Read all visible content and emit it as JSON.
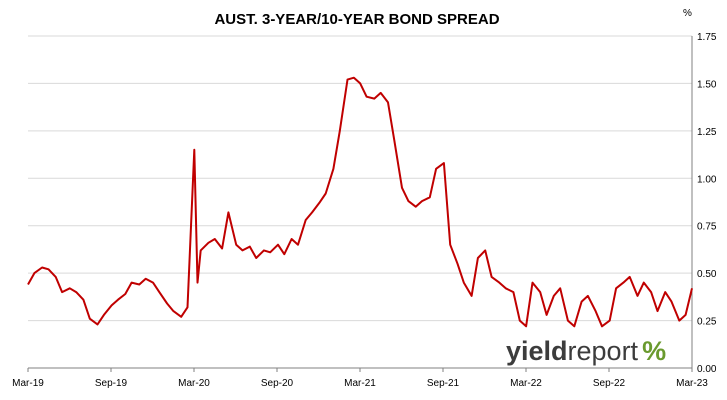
{
  "chart_data": {
    "type": "line",
    "title": "AUST. 3-YEAR/10-YEAR BOND SPREAD",
    "unit_label": "%",
    "ylim": [
      0,
      1.75
    ],
    "y_ticks": [
      "0.00",
      "0.25",
      "0.50",
      "0.75",
      "1.00",
      "1.25",
      "1.50",
      "1.75"
    ],
    "x_ticks": [
      "Mar-19",
      "Sep-19",
      "Mar-20",
      "Sep-20",
      "Mar-21",
      "Sep-21",
      "Mar-22",
      "Sep-22",
      "Mar-23"
    ],
    "grid": "horizontal",
    "legend": "none",
    "color": "#c00000",
    "series": [
      {
        "x": [
          "2019-03-01",
          "2019-03-15",
          "2019-04-01",
          "2019-04-15",
          "2019-05-01",
          "2019-05-15",
          "2019-06-01",
          "2019-06-15",
          "2019-07-01",
          "2019-07-15",
          "2019-08-01",
          "2019-08-15",
          "2019-09-01",
          "2019-09-15",
          "2019-10-01",
          "2019-10-15",
          "2019-11-01",
          "2019-11-15",
          "2019-12-01",
          "2019-12-15",
          "2020-01-01",
          "2020-01-15",
          "2020-02-01",
          "2020-02-15",
          "2020-03-01",
          "2020-03-08",
          "2020-03-15",
          "2020-04-01",
          "2020-04-15",
          "2020-05-01",
          "2020-05-15",
          "2020-06-01",
          "2020-06-15",
          "2020-07-01",
          "2020-07-15",
          "2020-08-01",
          "2020-08-15",
          "2020-09-01",
          "2020-09-15",
          "2020-10-01",
          "2020-10-15",
          "2020-11-01",
          "2020-11-15",
          "2020-12-01",
          "2020-12-15",
          "2021-01-01",
          "2021-01-15",
          "2021-02-01",
          "2021-02-15",
          "2021-03-01",
          "2021-03-15",
          "2021-04-01",
          "2021-04-15",
          "2021-05-01",
          "2021-05-15",
          "2021-06-01",
          "2021-06-15",
          "2021-07-01",
          "2021-07-15",
          "2021-08-01",
          "2021-08-15",
          "2021-09-01",
          "2021-09-15",
          "2021-10-01",
          "2021-10-15",
          "2021-11-01",
          "2021-11-15",
          "2021-12-01",
          "2021-12-15",
          "2022-01-01",
          "2022-01-15",
          "2022-02-01",
          "2022-02-15",
          "2022-03-01",
          "2022-03-15",
          "2022-04-01",
          "2022-04-15",
          "2022-05-01",
          "2022-05-15",
          "2022-06-01",
          "2022-06-15",
          "2022-07-01",
          "2022-07-15",
          "2022-08-01",
          "2022-08-15",
          "2022-09-01",
          "2022-09-15",
          "2022-10-01",
          "2022-10-15",
          "2022-11-01",
          "2022-11-15",
          "2022-12-01",
          "2022-12-15",
          "2023-01-01",
          "2023-01-15",
          "2023-02-01",
          "2023-02-15",
          "2023-03-01"
        ],
        "values": [
          0.44,
          0.5,
          0.53,
          0.52,
          0.48,
          0.4,
          0.42,
          0.4,
          0.36,
          0.26,
          0.23,
          0.28,
          0.33,
          0.36,
          0.39,
          0.45,
          0.44,
          0.47,
          0.45,
          0.4,
          0.34,
          0.3,
          0.27,
          0.32,
          1.15,
          0.45,
          0.62,
          0.66,
          0.68,
          0.63,
          0.82,
          0.65,
          0.62,
          0.64,
          0.58,
          0.62,
          0.61,
          0.65,
          0.6,
          0.68,
          0.65,
          0.78,
          0.82,
          0.87,
          0.92,
          1.05,
          1.25,
          1.52,
          1.53,
          1.5,
          1.43,
          1.42,
          1.45,
          1.4,
          1.2,
          0.95,
          0.88,
          0.85,
          0.88,
          0.9,
          1.05,
          1.08,
          0.65,
          0.55,
          0.45,
          0.38,
          0.58,
          0.62,
          0.48,
          0.45,
          0.42,
          0.4,
          0.25,
          0.22,
          0.45,
          0.4,
          0.28,
          0.38,
          0.42,
          0.25,
          0.22,
          0.35,
          0.38,
          0.3,
          0.22,
          0.25,
          0.42,
          0.45,
          0.48,
          0.38,
          0.45,
          0.4,
          0.3,
          0.4,
          0.35,
          0.25,
          0.28,
          0.42
        ]
      }
    ]
  },
  "branding": {
    "part_a": "yield",
    "part_b": "report",
    "part_c": "%"
  }
}
